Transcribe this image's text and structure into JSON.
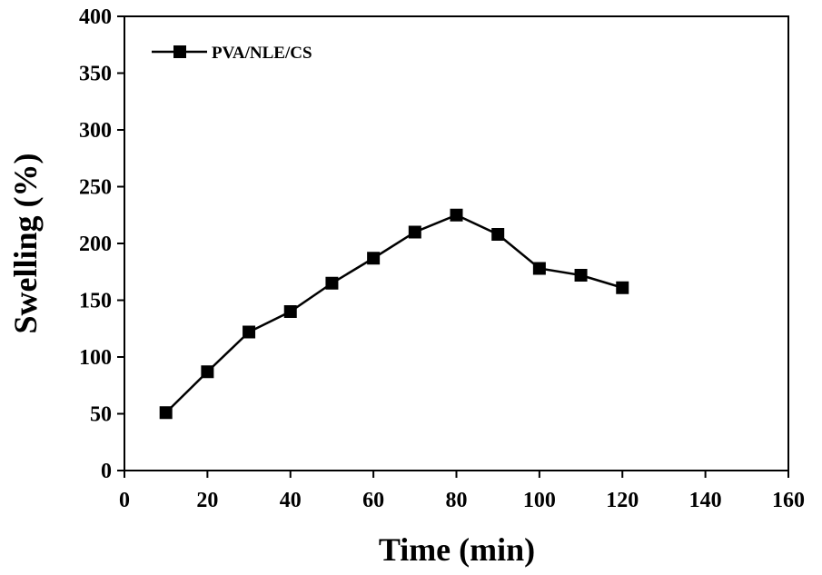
{
  "chart_data": {
    "type": "line",
    "title": "",
    "xlabel": "Time (min)",
    "ylabel": "Swelling (%)",
    "xlim": [
      0,
      160
    ],
    "ylim": [
      0,
      400
    ],
    "xticks": [
      0,
      20,
      40,
      60,
      80,
      100,
      120,
      140,
      160
    ],
    "yticks": [
      0,
      50,
      100,
      150,
      200,
      250,
      300,
      350,
      400
    ],
    "grid": false,
    "legend_position": "top-left",
    "series": [
      {
        "name": "PVA/NLE/CS",
        "marker": "square",
        "color": "#000000",
        "x": [
          10,
          20,
          30,
          40,
          50,
          60,
          70,
          80,
          90,
          100,
          110,
          120
        ],
        "y": [
          51,
          87,
          122,
          140,
          165,
          187,
          210,
          225,
          208,
          178,
          172,
          161
        ]
      }
    ]
  }
}
